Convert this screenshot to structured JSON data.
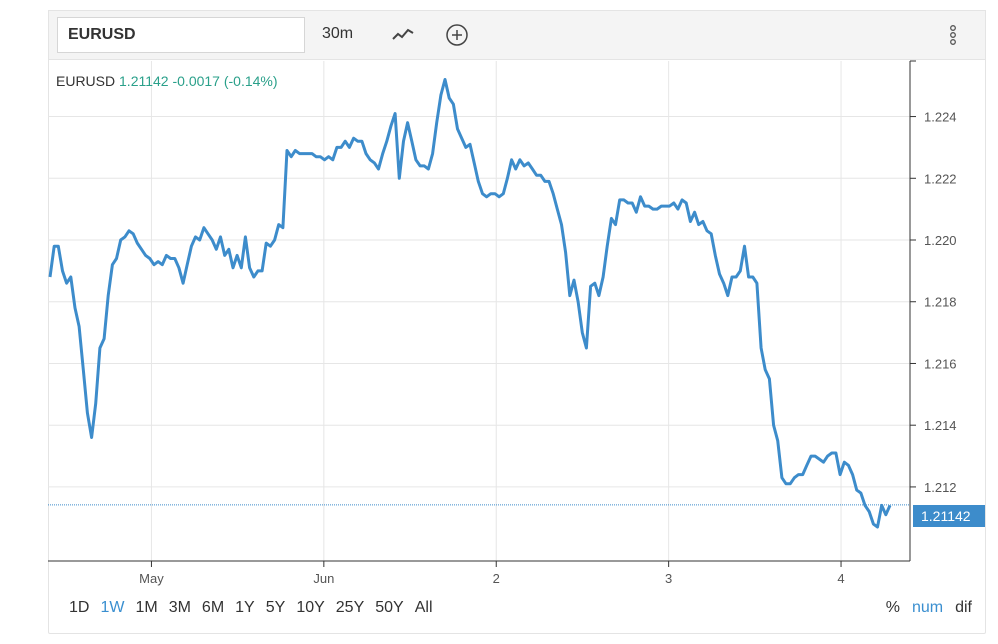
{
  "toolbar": {
    "symbol_value": "EURUSD",
    "interval": "30m",
    "chart_type_icon": "line-chart-icon",
    "add_icon": "plus-circle-icon",
    "menu_icon": "vertical-ellipsis-icon"
  },
  "legend": {
    "symbol": "EURUSD",
    "last": "1.21142",
    "change": "-0.0017 (-0.14%)"
  },
  "price_flag": "1.21142",
  "ranges": [
    {
      "label": "1D",
      "active": false
    },
    {
      "label": "1W",
      "active": true
    },
    {
      "label": "1M",
      "active": false
    },
    {
      "label": "3M",
      "active": false
    },
    {
      "label": "6M",
      "active": false
    },
    {
      "label": "1Y",
      "active": false
    },
    {
      "label": "5Y",
      "active": false
    },
    {
      "label": "10Y",
      "active": false
    },
    {
      "label": "25Y",
      "active": false
    },
    {
      "label": "50Y",
      "active": false
    },
    {
      "label": "All",
      "active": false
    }
  ],
  "modes": [
    {
      "label": "%",
      "active": false
    },
    {
      "label": "num",
      "active": true
    },
    {
      "label": "dif",
      "active": false
    }
  ],
  "colors": {
    "line": "#3d8ccb",
    "positive_text": "#2aa08a",
    "active": "#3a8fd0"
  },
  "chart_data": {
    "type": "line",
    "title": "",
    "xlabel": "",
    "ylabel": "",
    "grid": true,
    "x_ticks": [
      {
        "label": "May",
        "t": 0.12
      },
      {
        "label": "Jun",
        "t": 0.32
      },
      {
        "label": "2",
        "t": 0.52
      },
      {
        "label": "3",
        "t": 0.72
      },
      {
        "label": "4",
        "t": 0.92
      }
    ],
    "y_ticks": [
      1.212,
      1.214,
      1.216,
      1.218,
      1.22,
      1.222,
      1.224
    ],
    "ylim": [
      1.2096,
      1.2258
    ],
    "last_value": 1.21142,
    "series": [
      {
        "name": "",
        "values": [
          1.2188,
          1.2198,
          1.2198,
          1.219,
          1.2186,
          1.2188,
          1.2178,
          1.2172,
          1.2158,
          1.2144,
          1.2136,
          1.2147,
          1.2165,
          1.2168,
          1.2182,
          1.2192,
          1.2194,
          1.22,
          1.2201,
          1.2203,
          1.2202,
          1.2199,
          1.2197,
          1.2195,
          1.2194,
          1.2192,
          1.2193,
          1.2192,
          1.2195,
          1.2194,
          1.2194,
          1.2191,
          1.2186,
          1.2192,
          1.2198,
          1.2201,
          1.22,
          1.2204,
          1.2202,
          1.22,
          1.2197,
          1.2201,
          1.2195,
          1.2197,
          1.2191,
          1.2195,
          1.2191,
          1.2201,
          1.2191,
          1.2188,
          1.219,
          1.219,
          1.2199,
          1.2198,
          1.22,
          1.2205,
          1.2204,
          1.2229,
          1.2227,
          1.2229,
          1.2228,
          1.2228,
          1.2228,
          1.2228,
          1.2227,
          1.2227,
          1.2226,
          1.2227,
          1.2226,
          1.223,
          1.223,
          1.2232,
          1.223,
          1.2233,
          1.2232,
          1.2232,
          1.2228,
          1.2226,
          1.2225,
          1.2223,
          1.2228,
          1.2232,
          1.2237,
          1.2241,
          1.222,
          1.2232,
          1.2238,
          1.2232,
          1.2226,
          1.2224,
          1.2224,
          1.2223,
          1.2228,
          1.2238,
          1.2247,
          1.2252,
          1.2246,
          1.2244,
          1.2236,
          1.2233,
          1.223,
          1.2231,
          1.2225,
          1.2219,
          1.2215,
          1.2214,
          1.2215,
          1.2215,
          1.2214,
          1.2215,
          1.222,
          1.2226,
          1.2223,
          1.2226,
          1.2224,
          1.2225,
          1.2223,
          1.2221,
          1.2221,
          1.2219,
          1.2219,
          1.2215,
          1.221,
          1.2205,
          1.2196,
          1.2182,
          1.2187,
          1.218,
          1.217,
          1.2165,
          1.2185,
          1.2186,
          1.2182,
          1.2188,
          1.2198,
          1.2207,
          1.2205,
          1.2213,
          1.2213,
          1.2212,
          1.2212,
          1.2209,
          1.2214,
          1.2211,
          1.2211,
          1.221,
          1.221,
          1.2211,
          1.2211,
          1.2211,
          1.2212,
          1.221,
          1.2213,
          1.2212,
          1.2206,
          1.2209,
          1.2205,
          1.2206,
          1.2203,
          1.2202,
          1.2195,
          1.2189,
          1.2186,
          1.2182,
          1.2188,
          1.2188,
          1.219,
          1.2198,
          1.2188,
          1.2188,
          1.2186,
          1.2165,
          1.2158,
          1.2155,
          1.214,
          1.2135,
          1.2123,
          1.2121,
          1.2121,
          1.2123,
          1.2124,
          1.2124,
          1.2127,
          1.213,
          1.213,
          1.2129,
          1.2128,
          1.213,
          1.2131,
          1.2131,
          1.2124,
          1.2128,
          1.2127,
          1.2124,
          1.2119,
          1.2118,
          1.2114,
          1.2112,
          1.2108,
          1.2107,
          1.2114,
          1.2111,
          1.2114
        ]
      }
    ]
  }
}
